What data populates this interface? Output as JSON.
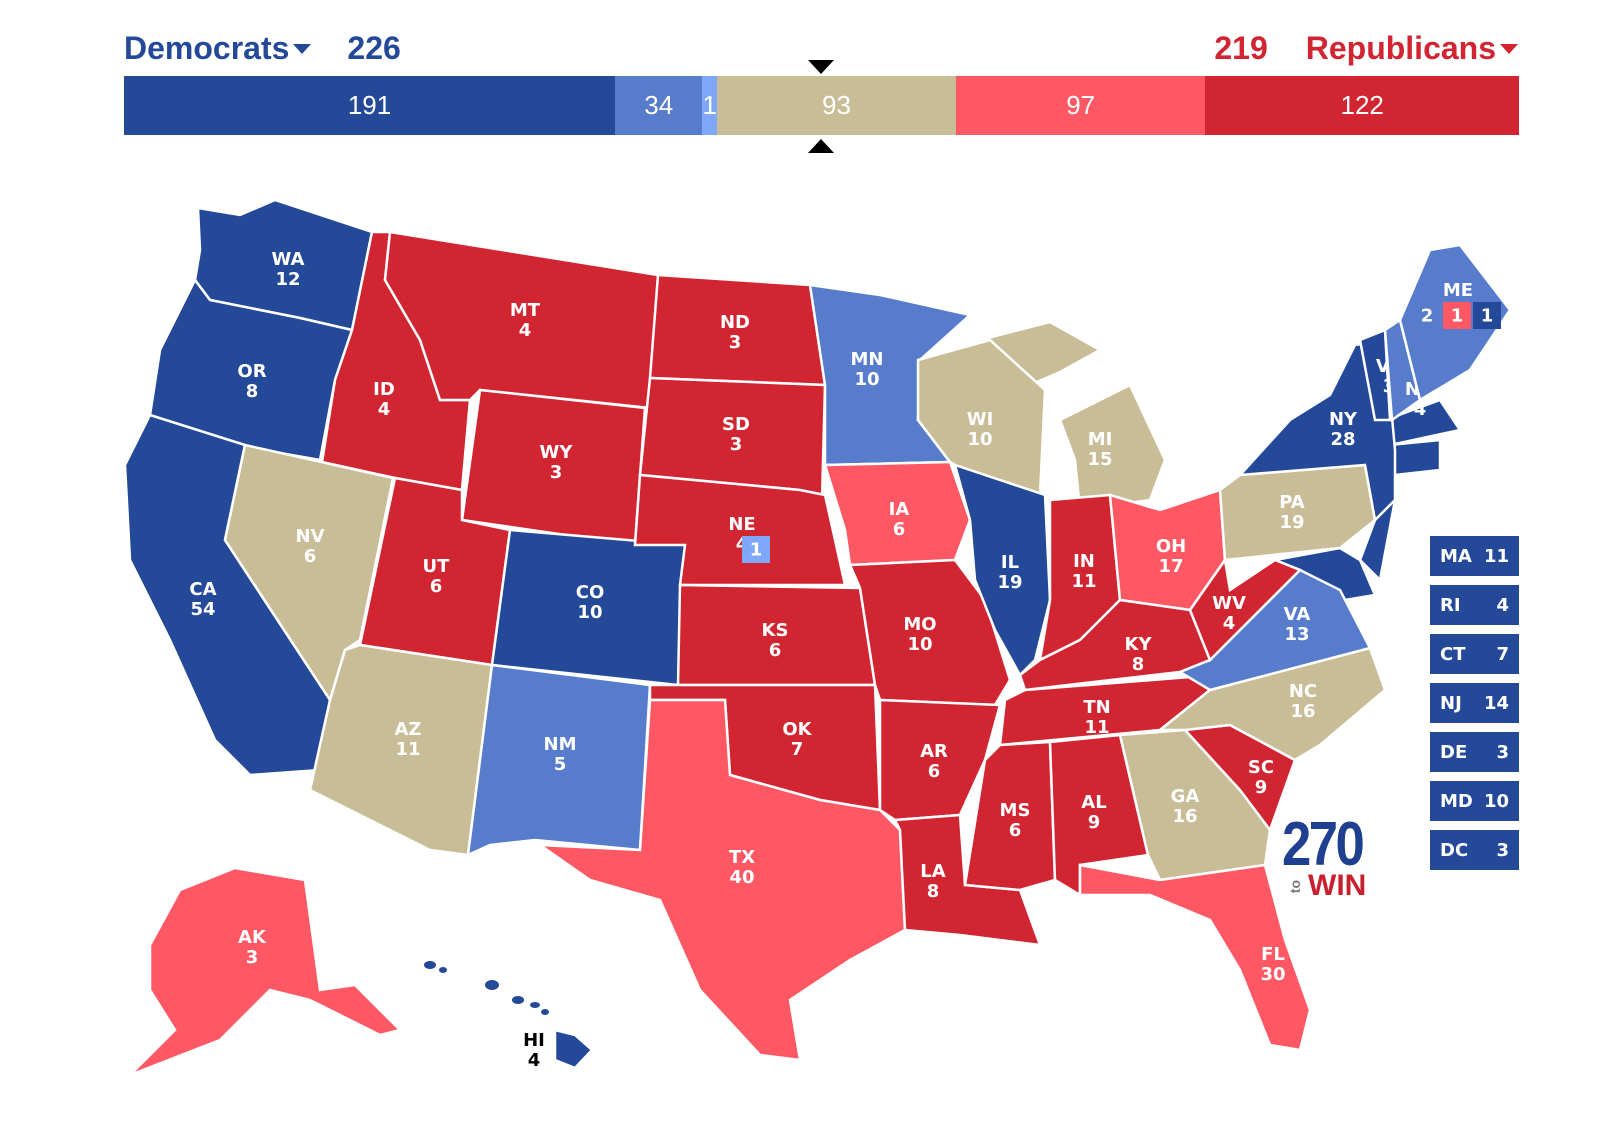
{
  "header": {
    "dem_label": "Democrats",
    "dem_total": "226",
    "rep_label": "Republicans",
    "rep_total": "219"
  },
  "colors": {
    "safe_d": "#244999",
    "likely_d": "#577ccc",
    "lean_d": "#80a8fa",
    "tossup": "#c9bd98",
    "lean_r": "#ff5865",
    "safe_r": "#d22532"
  },
  "bar": [
    {
      "rating": "safe_d",
      "value": 191,
      "label": "191"
    },
    {
      "rating": "likely_d",
      "value": 34,
      "label": "34"
    },
    {
      "rating": "lean_d",
      "value": 1,
      "label": "1"
    },
    {
      "rating": "tossup",
      "value": 93,
      "label": "93"
    },
    {
      "rating": "lean_r",
      "value": 97,
      "label": "97"
    },
    {
      "rating": "safe_r",
      "value": 122,
      "label": "122"
    }
  ],
  "states": [
    {
      "abbr": "WA",
      "ev": "12",
      "rating": "safe_d"
    },
    {
      "abbr": "OR",
      "ev": "8",
      "rating": "safe_d"
    },
    {
      "abbr": "CA",
      "ev": "54",
      "rating": "safe_d"
    },
    {
      "abbr": "NV",
      "ev": "6",
      "rating": "tossup"
    },
    {
      "abbr": "ID",
      "ev": "4",
      "rating": "safe_r"
    },
    {
      "abbr": "MT",
      "ev": "4",
      "rating": "safe_r"
    },
    {
      "abbr": "WY",
      "ev": "3",
      "rating": "safe_r"
    },
    {
      "abbr": "UT",
      "ev": "6",
      "rating": "safe_r"
    },
    {
      "abbr": "CO",
      "ev": "10",
      "rating": "safe_d"
    },
    {
      "abbr": "AZ",
      "ev": "11",
      "rating": "tossup"
    },
    {
      "abbr": "NM",
      "ev": "5",
      "rating": "likely_d"
    },
    {
      "abbr": "ND",
      "ev": "3",
      "rating": "safe_r"
    },
    {
      "abbr": "SD",
      "ev": "3",
      "rating": "safe_r"
    },
    {
      "abbr": "NE",
      "ev": "4",
      "rating": "safe_r"
    },
    {
      "abbr": "KS",
      "ev": "6",
      "rating": "safe_r"
    },
    {
      "abbr": "OK",
      "ev": "7",
      "rating": "safe_r"
    },
    {
      "abbr": "TX",
      "ev": "40",
      "rating": "lean_r"
    },
    {
      "abbr": "MN",
      "ev": "10",
      "rating": "likely_d"
    },
    {
      "abbr": "IA",
      "ev": "6",
      "rating": "lean_r"
    },
    {
      "abbr": "MO",
      "ev": "10",
      "rating": "safe_r"
    },
    {
      "abbr": "AR",
      "ev": "6",
      "rating": "safe_r"
    },
    {
      "abbr": "LA",
      "ev": "8",
      "rating": "safe_r"
    },
    {
      "abbr": "WI",
      "ev": "10",
      "rating": "tossup"
    },
    {
      "abbr": "IL",
      "ev": "19",
      "rating": "safe_d"
    },
    {
      "abbr": "MI",
      "ev": "15",
      "rating": "tossup"
    },
    {
      "abbr": "IN",
      "ev": "11",
      "rating": "safe_r"
    },
    {
      "abbr": "OH",
      "ev": "17",
      "rating": "lean_r"
    },
    {
      "abbr": "KY",
      "ev": "8",
      "rating": "safe_r"
    },
    {
      "abbr": "TN",
      "ev": "11",
      "rating": "safe_r"
    },
    {
      "abbr": "MS",
      "ev": "6",
      "rating": "safe_r"
    },
    {
      "abbr": "AL",
      "ev": "9",
      "rating": "safe_r"
    },
    {
      "abbr": "GA",
      "ev": "16",
      "rating": "tossup"
    },
    {
      "abbr": "FL",
      "ev": "30",
      "rating": "lean_r"
    },
    {
      "abbr": "SC",
      "ev": "9",
      "rating": "safe_r"
    },
    {
      "abbr": "NC",
      "ev": "16",
      "rating": "tossup"
    },
    {
      "abbr": "VA",
      "ev": "13",
      "rating": "likely_d"
    },
    {
      "abbr": "WV",
      "ev": "4",
      "rating": "safe_r"
    },
    {
      "abbr": "PA",
      "ev": "19",
      "rating": "tossup"
    },
    {
      "abbr": "NY",
      "ev": "28",
      "rating": "safe_d"
    },
    {
      "abbr": "VT",
      "ev": "3",
      "rating": "safe_d"
    },
    {
      "abbr": "NH",
      "ev": "4",
      "rating": "likely_d"
    },
    {
      "abbr": "ME",
      "ev": "",
      "rating": "likely_d"
    },
    {
      "abbr": "AK",
      "ev": "3",
      "rating": "lean_r"
    },
    {
      "abbr": "HI",
      "ev": "4",
      "rating": "safe_d"
    }
  ],
  "unlabeled_regions": [
    {
      "name": "NJ",
      "rating": "safe_d"
    },
    {
      "name": "MD",
      "rating": "safe_d"
    },
    {
      "name": "MA",
      "rating": "safe_d"
    },
    {
      "name": "CT",
      "rating": "safe_d"
    }
  ],
  "splits": {
    "ME": [
      {
        "ev": "2",
        "rating": "likely_d"
      },
      {
        "ev": "1",
        "rating": "lean_r"
      },
      {
        "ev": "1",
        "rating": "safe_d"
      }
    ],
    "NE": [
      {
        "ev": "1",
        "rating": "lean_d"
      }
    ]
  },
  "small_states": [
    {
      "abbr": "MA",
      "ev": "11",
      "rating": "safe_d"
    },
    {
      "abbr": "RI",
      "ev": "4",
      "rating": "safe_d"
    },
    {
      "abbr": "CT",
      "ev": "7",
      "rating": "safe_d"
    },
    {
      "abbr": "NJ",
      "ev": "14",
      "rating": "safe_d"
    },
    {
      "abbr": "DE",
      "ev": "3",
      "rating": "safe_d"
    },
    {
      "abbr": "MD",
      "ev": "10",
      "rating": "safe_d"
    },
    {
      "abbr": "DC",
      "ev": "3",
      "rating": "safe_d"
    }
  ],
  "logo": {
    "number": "270",
    "to": "to",
    "win": "WIN"
  }
}
